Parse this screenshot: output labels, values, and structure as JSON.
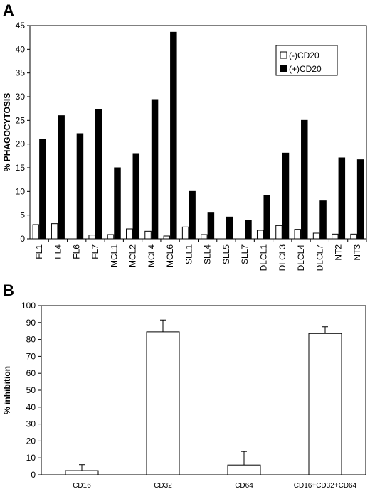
{
  "panel_labels": [
    "A",
    "B"
  ],
  "chart_data": [
    {
      "type": "bar",
      "panel": "A",
      "title": "",
      "xlabel": "",
      "ylabel": "% PHAGOCYTOSIS",
      "ylim": [
        0,
        45
      ],
      "yticks": [
        0,
        5,
        10,
        15,
        20,
        25,
        30,
        35,
        40,
        45
      ],
      "grid": false,
      "legend_position": "top-right",
      "categories": [
        "FL1",
        "FL4",
        "FL6",
        "FL7",
        "MCL1",
        "MCL2",
        "MCL4",
        "MCL6",
        "SLL1",
        "SLL4",
        "SLL5",
        "SLL7",
        "DLCL1",
        "DLCL3",
        "DLCL4",
        "DLCL7",
        "NT2",
        "NT3"
      ],
      "series": [
        {
          "name": "(-)CD20",
          "color": "#ffffff",
          "values": [
            3.0,
            3.2,
            0,
            0.8,
            0.9,
            2.1,
            1.6,
            0.6,
            2.5,
            0.9,
            0,
            0,
            1.8,
            2.8,
            2.0,
            1.2,
            1.0,
            1.0
          ]
        },
        {
          "name": "(+)CD20",
          "color": "#000000",
          "values": [
            21.0,
            26.0,
            22.2,
            27.3,
            15.0,
            18.0,
            29.4,
            43.6,
            10.0,
            5.6,
            4.6,
            3.9,
            9.2,
            18.1,
            25.0,
            8.0,
            17.1,
            16.7
          ]
        }
      ]
    },
    {
      "type": "bar",
      "panel": "B",
      "title": "",
      "xlabel": "",
      "ylabel": "% inhibition",
      "ylim": [
        0,
        100
      ],
      "yticks": [
        0,
        10,
        20,
        30,
        40,
        50,
        60,
        70,
        80,
        90,
        100
      ],
      "grid": false,
      "categories": [
        "CD16",
        "CD32",
        "CD64",
        "CD16+CD32+CD64"
      ],
      "values": [
        2.5,
        84.5,
        5.8,
        83.5
      ],
      "error_upper": [
        3.5,
        7.0,
        8.0,
        4.0
      ],
      "bar_color": "#ffffff"
    }
  ]
}
